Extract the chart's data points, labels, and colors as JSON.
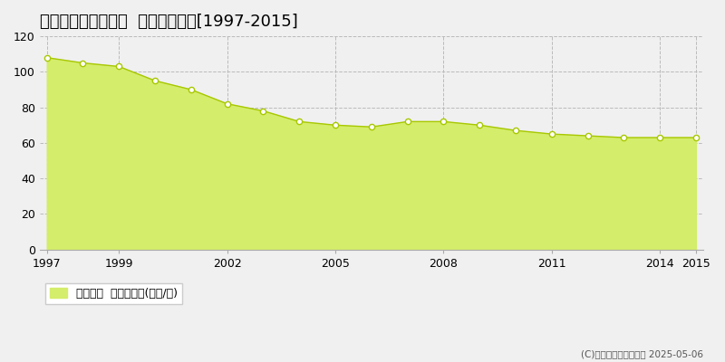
{
  "title": "大阪市鶴見区今津南  基準地価推移[1997-2015]",
  "years": [
    1997,
    1998,
    1999,
    2000,
    2001,
    2002,
    2003,
    2004,
    2005,
    2006,
    2007,
    2008,
    2009,
    2010,
    2011,
    2012,
    2013,
    2014,
    2015
  ],
  "values": [
    108,
    105,
    103,
    95,
    90,
    82,
    78,
    72,
    70,
    69,
    72,
    72,
    70,
    67,
    65,
    64,
    63,
    63,
    63
  ],
  "line_color": "#a8c800",
  "fill_color": "#d4ed6a",
  "marker_face": "#ffffff",
  "marker_edge": "#a8c800",
  "grid_color": "#bbbbbb",
  "bg_color": "#f0f0f0",
  "plot_bg_color": "#f0f0f0",
  "ylim": [
    0,
    120
  ],
  "yticks": [
    0,
    20,
    40,
    60,
    80,
    100,
    120
  ],
  "xlim_min": 1997,
  "xlim_max": 2015,
  "xticks": [
    1997,
    1999,
    2002,
    2005,
    2008,
    2011,
    2014,
    2015
  ],
  "legend_label": "基準地価  平均坪単価(万円/坪)",
  "copyright_text": "(C)土地価格ドットコム 2025-05-06",
  "title_fontsize": 13,
  "tick_fontsize": 9,
  "legend_fontsize": 9
}
